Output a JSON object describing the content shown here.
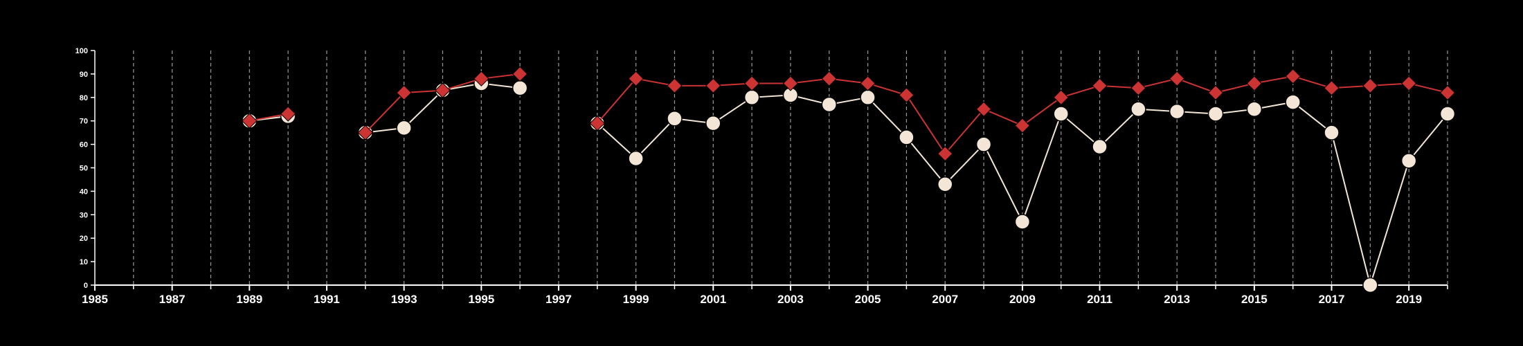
{
  "chart_data": {
    "type": "line",
    "title": "",
    "xlabel": "",
    "ylabel": "",
    "xlim": [
      1985,
      2020
    ],
    "ylim": [
      0,
      100
    ],
    "y_ticks": [
      0,
      10,
      20,
      30,
      40,
      50,
      60,
      70,
      80,
      90,
      100
    ],
    "x_ticks": [
      1985,
      1987,
      1989,
      1991,
      1993,
      1995,
      1997,
      1999,
      2001,
      2003,
      2005,
      2007,
      2009,
      2011,
      2013,
      2015,
      2017,
      2019
    ],
    "x_minor_ticks": [
      1986,
      1987,
      1988,
      1989,
      1990,
      1991,
      1992,
      1993,
      1994,
      1995,
      1996,
      1997,
      1998,
      1999,
      2000,
      2001,
      2002,
      2003,
      2004,
      2005,
      2006,
      2007,
      2008,
      2009,
      2010,
      2011,
      2012,
      2013,
      2014,
      2015,
      2016,
      2017,
      2018,
      2019,
      2020
    ],
    "grid": "vertical dashed",
    "legend": "none",
    "x": [
      1989,
      1990,
      1992,
      1993,
      1994,
      1995,
      1996,
      1998,
      1999,
      2000,
      2001,
      2002,
      2003,
      2004,
      2005,
      2006,
      2007,
      2008,
      2009,
      2010,
      2011,
      2012,
      2013,
      2014,
      2015,
      2016,
      2017,
      2018,
      2019,
      2020
    ],
    "series": [
      {
        "marker": "circle",
        "color": "#f3e6d6",
        "values": [
          70,
          72,
          65,
          67,
          83,
          86,
          84,
          69,
          54,
          71,
          69,
          80,
          81,
          77,
          80,
          63,
          43,
          60,
          27,
          73,
          59,
          75,
          74,
          73,
          75,
          78,
          65,
          0,
          53,
          73
        ]
      },
      {
        "marker": "diamond",
        "color": "#cc3333",
        "values": [
          70,
          73,
          65,
          82,
          83,
          88,
          90,
          69,
          88,
          85,
          85,
          86,
          86,
          88,
          86,
          81,
          56,
          75,
          68,
          80,
          85,
          84,
          88,
          82,
          86,
          89,
          84,
          85,
          86,
          82
        ]
      }
    ]
  }
}
